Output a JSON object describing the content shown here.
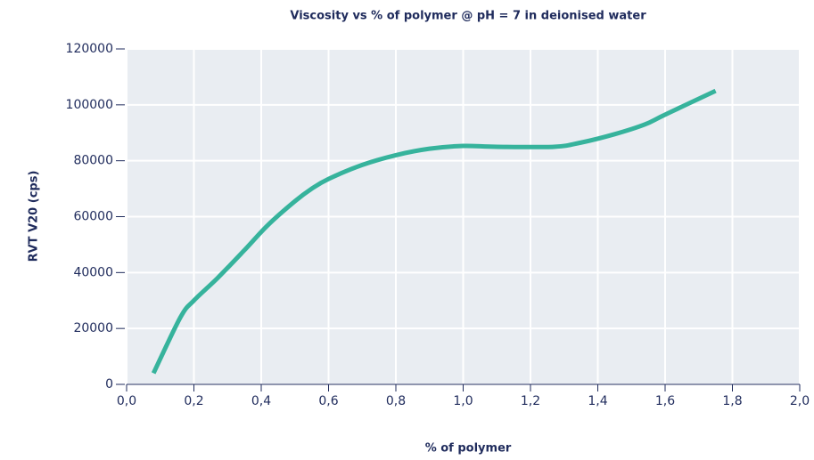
{
  "chart_data": {
    "type": "line",
    "title": "Viscosity vs % of polymer @ pH = 7 in deionised water",
    "x_label": "% of polymer",
    "y_label": "RVT V20 (cps)",
    "series": [
      {
        "name": "Viscosity",
        "color": "#36b39c",
        "x": [
          0.08,
          0.16,
          0.2,
          0.27,
          0.35,
          0.42,
          0.5,
          0.55,
          0.6,
          0.7,
          0.8,
          0.9,
          1.0,
          1.1,
          1.27,
          1.35,
          1.45,
          1.54,
          1.6,
          1.75
        ],
        "values": [
          4000,
          24000,
          30000,
          38000,
          48000,
          57000,
          65500,
          70000,
          73500,
          78500,
          82000,
          84300,
          85300,
          85000,
          85000,
          86500,
          89500,
          93000,
          96500,
          105000
        ]
      }
    ],
    "xlim": [
      0,
      2
    ],
    "xticks": [
      {
        "value": 0,
        "label": "0,0"
      },
      {
        "value": 0.2,
        "label": "0,2"
      },
      {
        "value": 0.4,
        "label": "0,4"
      },
      {
        "value": 0.6,
        "label": "0,6"
      },
      {
        "value": 0.8,
        "label": "0,8"
      },
      {
        "value": 1.0,
        "label": "1,0"
      },
      {
        "value": 1.2,
        "label": "1,2"
      },
      {
        "value": 1.4,
        "label": "1,4"
      },
      {
        "value": 1.6,
        "label": "1,6"
      },
      {
        "value": 1.8,
        "label": "1,8"
      },
      {
        "value": 2.0,
        "label": "2,0"
      }
    ],
    "ylim": [
      0,
      120000
    ],
    "yticks": [
      0,
      20000,
      40000,
      60000,
      80000,
      100000,
      120000
    ],
    "grid": true
  }
}
